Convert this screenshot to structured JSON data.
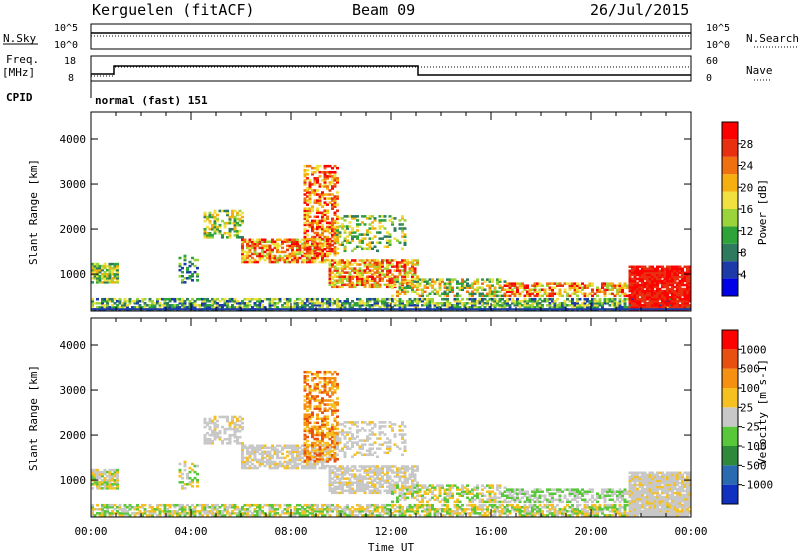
{
  "header": {
    "station": "Kerguelen (fitACF)",
    "beam": "Beam 09",
    "date": "26/Jul/2015"
  },
  "strip": {
    "nsky_label": "N.Sky",
    "nsearch_label": "N.Search",
    "nave_label": "Nave",
    "freq_label": "Freq.",
    "freq_unit": "[MHz]",
    "cpid_label": "CPID",
    "cpid_value": "normal (fast) 151",
    "noise_ticks_left": [
      "10^5",
      "10^0"
    ],
    "noise_ticks_right": [
      "10^5",
      "10^0"
    ],
    "freq_ticks": [
      "18",
      "8"
    ],
    "nave_ticks": [
      "60",
      "0"
    ]
  },
  "axes": {
    "ylabel": "Slant Range [km]",
    "xlabel": "Time UT",
    "yticks": [
      "1000",
      "2000",
      "3000",
      "4000"
    ],
    "xticks": [
      "00:00",
      "04:00",
      "08:00",
      "12:00",
      "16:00",
      "20:00",
      "00:00"
    ]
  },
  "chart_data": [
    {
      "type": "heatmap",
      "title": "",
      "xlabel": "",
      "ylabel": "Slant Range [km]",
      "colorbar_label": "Power [dB]",
      "colorbar_ticks": [
        "28",
        "24",
        "20",
        "16",
        "12",
        "8",
        "4"
      ],
      "xlim": [
        0,
        24
      ],
      "ylim": [
        180,
        4600
      ],
      "colors": [
        "#0000e6",
        "#1c3aa8",
        "#2e7a5e",
        "#2ea33a",
        "#9bd43a",
        "#f0e040",
        "#f5b00f",
        "#f07010",
        "#e83010",
        "#ff0000"
      ]
    },
    {
      "type": "heatmap",
      "title": "",
      "xlabel": "Time UT",
      "ylabel": "Slant Range [km]",
      "colorbar_label": "Velocity [m s-1]",
      "colorbar_ticks": [
        "1000",
        "500",
        "100",
        "25",
        "-25",
        "-100",
        "-500",
        "-1000"
      ],
      "xlim": [
        0,
        24
      ],
      "ylim": [
        180,
        4600
      ],
      "colors": [
        "#1030c0",
        "#2a6ab0",
        "#2e8a3a",
        "#58c83a",
        "#c8c8c8",
        "#f5c020",
        "#f59010",
        "#e85010",
        "#ff0000"
      ]
    }
  ]
}
